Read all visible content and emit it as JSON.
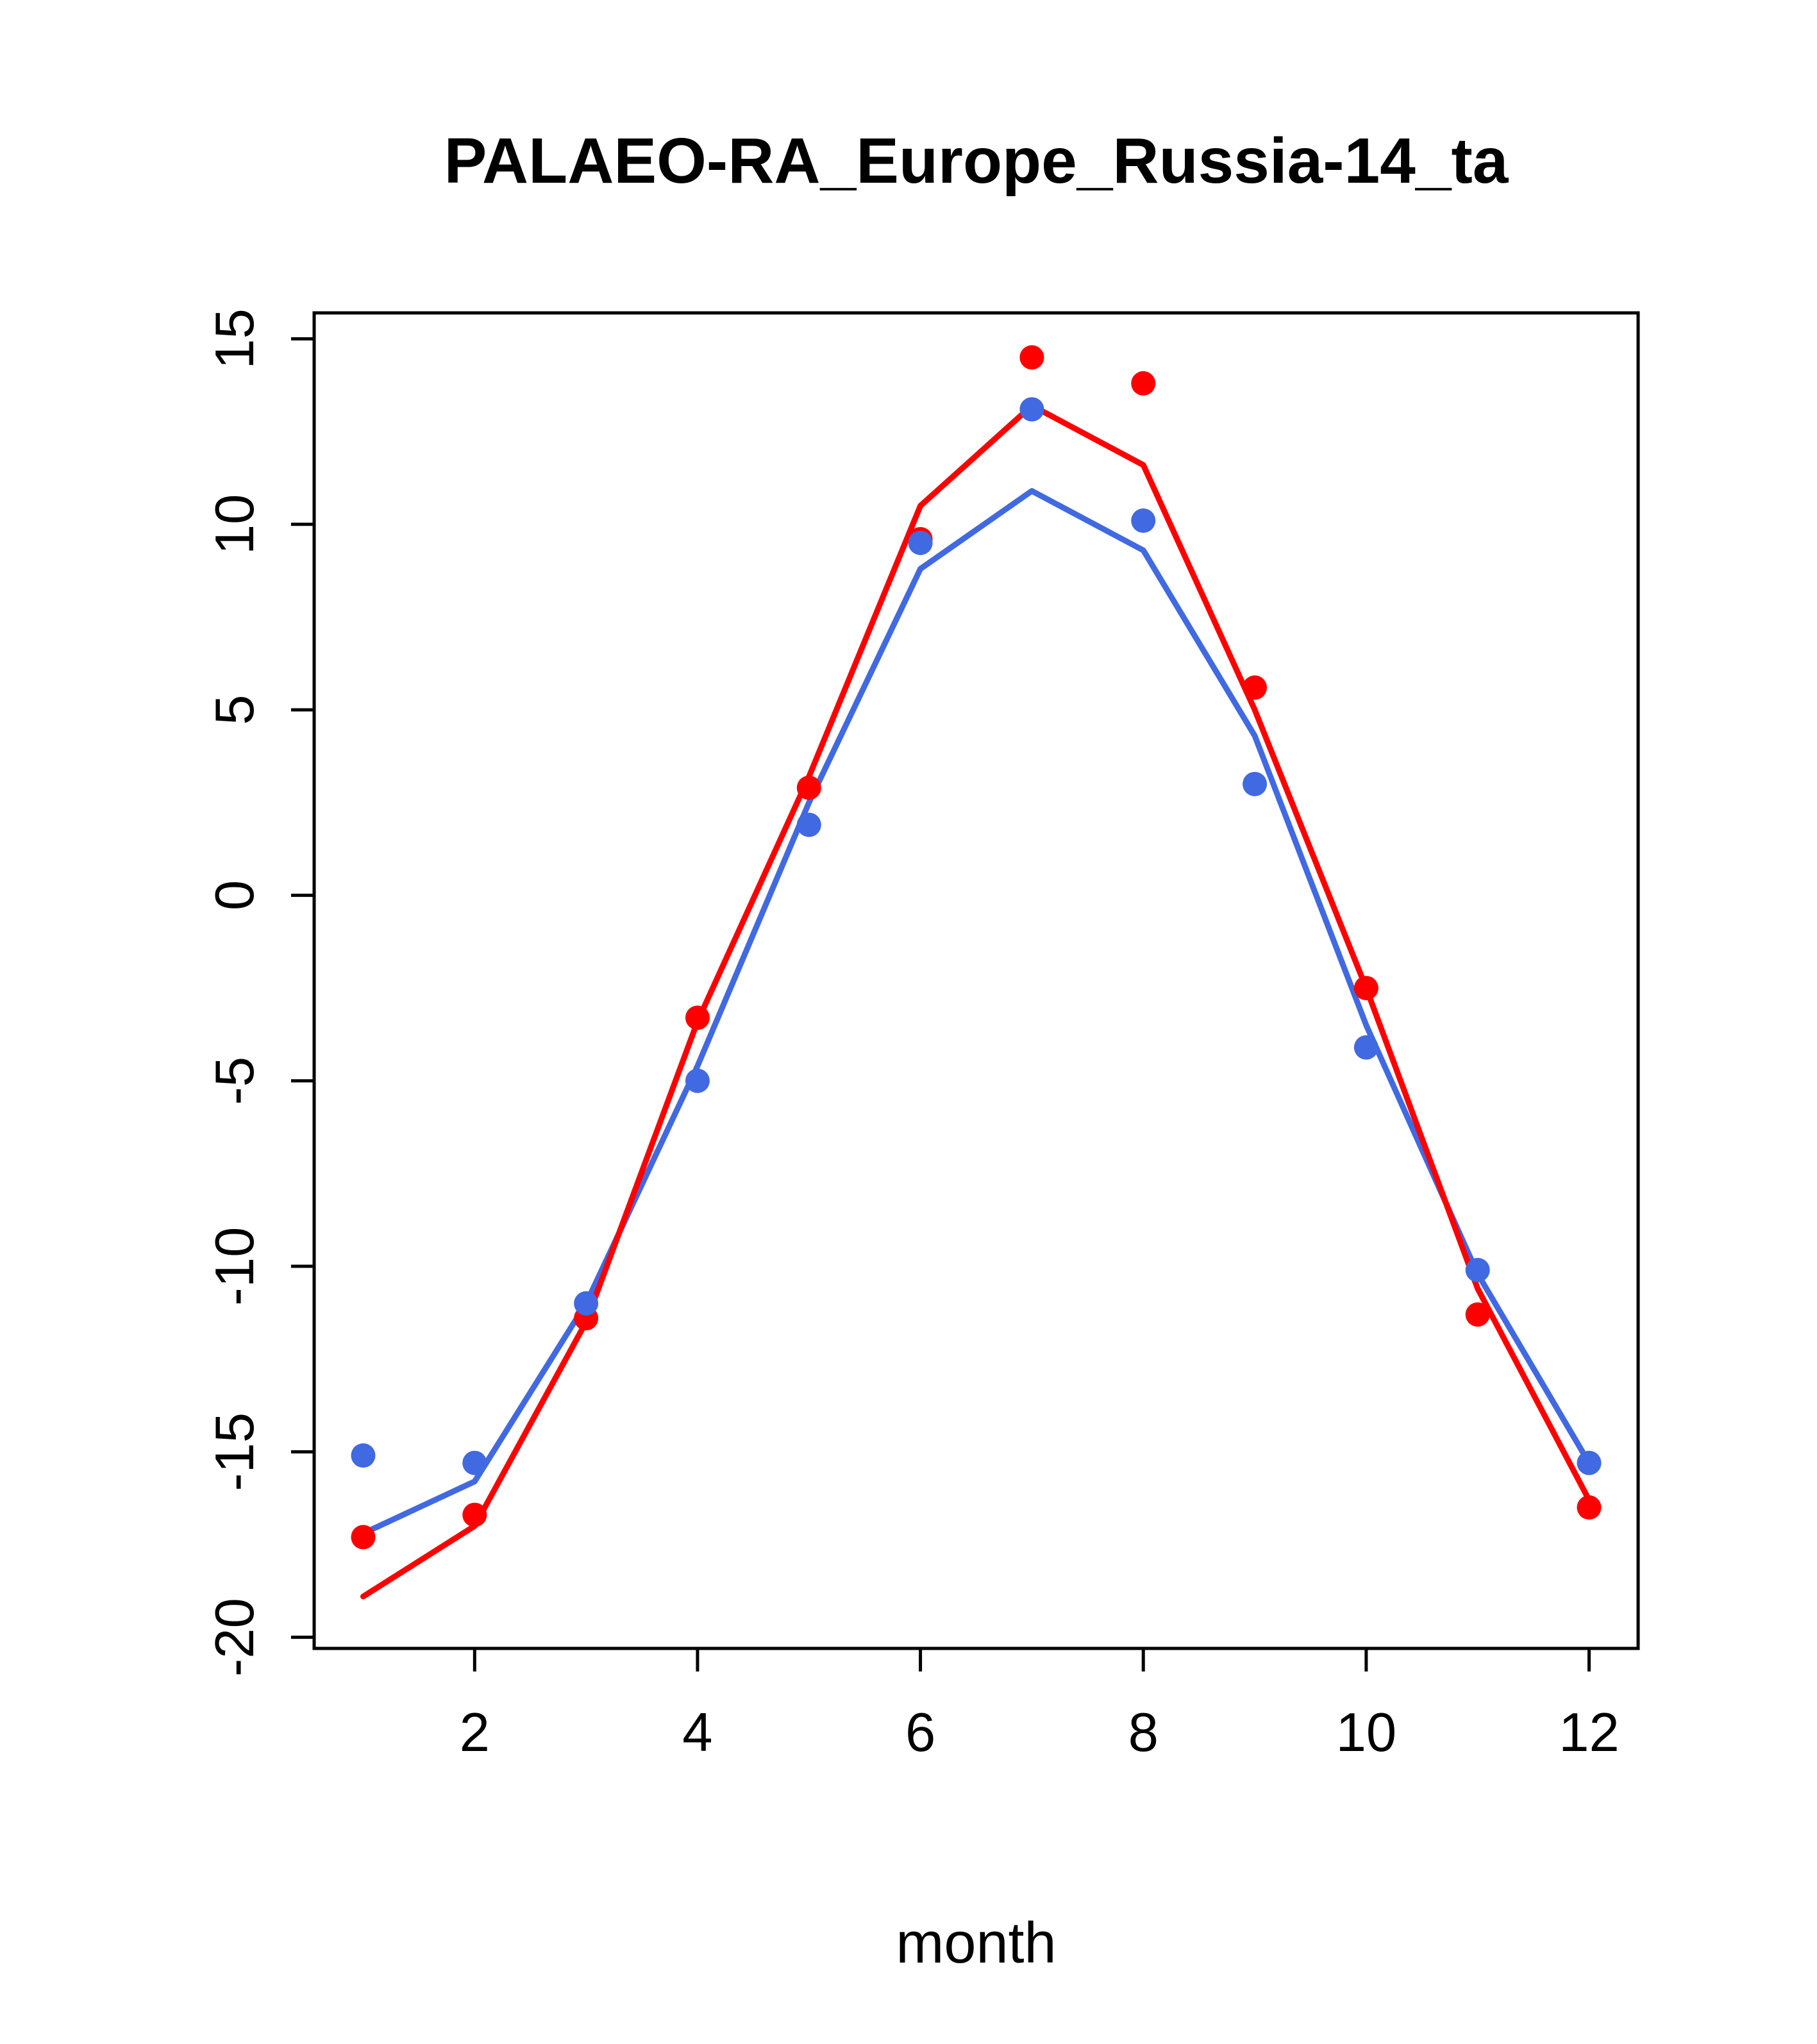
{
  "chart_data": {
    "type": "line",
    "title": "PALAEO-RA_Europe_Russia-14_ta",
    "xlabel": "month",
    "ylabel": "",
    "x": [
      1,
      2,
      3,
      4,
      5,
      6,
      7,
      8,
      9,
      10,
      11,
      12
    ],
    "xlim": [
      0.56,
      12.44
    ],
    "ylim": [
      -20.3,
      15.7
    ],
    "x_ticks": [
      2,
      4,
      6,
      8,
      10,
      12
    ],
    "y_ticks": [
      -20,
      -15,
      -10,
      -5,
      0,
      5,
      10,
      15
    ],
    "grid": false,
    "legend": "none",
    "colors": {
      "red": "#FF0000",
      "blue": "#4169E1",
      "axis": "#000000",
      "background": "#FFFFFF"
    },
    "series": [
      {
        "name": "blue-line",
        "kind": "line",
        "color": "#4169E1",
        "values": [
          -17.2,
          -15.8,
          -11.0,
          -4.6,
          2.5,
          8.8,
          10.9,
          9.3,
          4.3,
          -3.5,
          -10.2,
          -15.3
        ]
      },
      {
        "name": "red-line",
        "kind": "line",
        "color": "#FF0000",
        "values": [
          -18.9,
          -17.0,
          -11.5,
          -3.4,
          3.2,
          10.5,
          13.2,
          11.6,
          5.0,
          -2.5,
          -10.6,
          -16.3
        ]
      },
      {
        "name": "red-points",
        "kind": "scatter",
        "color": "#FF0000",
        "values": [
          -17.3,
          -16.7,
          -11.4,
          -3.3,
          2.9,
          9.6,
          14.5,
          13.8,
          5.6,
          -2.5,
          -11.3,
          -16.5
        ]
      },
      {
        "name": "blue-points",
        "kind": "scatter",
        "color": "#4169E1",
        "values": [
          -15.1,
          -15.3,
          -11.0,
          -5.0,
          1.9,
          9.5,
          13.1,
          10.1,
          3.0,
          -4.1,
          -10.1,
          -15.3
        ]
      }
    ]
  }
}
